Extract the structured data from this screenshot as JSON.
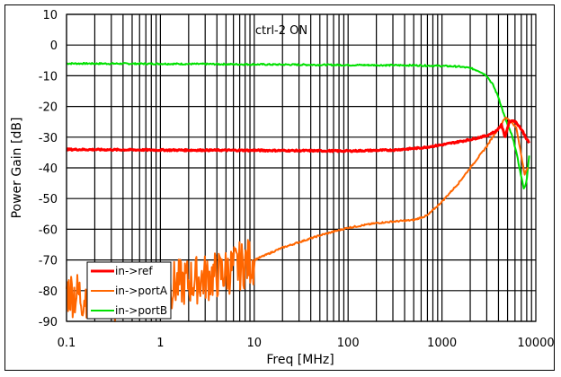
{
  "chart_data": {
    "type": "line",
    "title": "ctrl-2 ON",
    "xlabel": "Freq [MHz]",
    "ylabel": "Power Gain [dB]",
    "xscale": "log",
    "xlim": [
      0.1,
      10000
    ],
    "ylim": [
      -90,
      10
    ],
    "x_ticks": [
      "0.1",
      "1",
      "10",
      "100",
      "1000",
      "10000"
    ],
    "y_ticks": [
      "10",
      "0",
      "-10",
      "-20",
      "-30",
      "-40",
      "-50",
      "-60",
      "-70",
      "-80",
      "-90"
    ],
    "grid": true,
    "legend_position": "lower left",
    "series": [
      {
        "name": "in->ref",
        "color": "#ff0000",
        "width": 3,
        "x": [
          0.1,
          1,
          10,
          100,
          300,
          600,
          1000,
          1500,
          2000,
          3000,
          3800,
          4300,
          4700,
          5200,
          5800,
          6500,
          7200,
          7800,
          8500
        ],
        "y": [
          -34,
          -34.2,
          -34.3,
          -34.5,
          -34.2,
          -33.5,
          -32.5,
          -31.5,
          -30.8,
          -29.5,
          -28,
          -26,
          -30,
          -25,
          -24.5,
          -26,
          -28,
          -30,
          -32
        ]
      },
      {
        "name": "in->portA",
        "color": "#ff6600",
        "width": 2,
        "x": [
          0.1,
          0.15,
          0.2,
          0.3,
          0.5,
          0.8,
          1,
          2,
          4,
          7,
          10,
          20,
          50,
          100,
          200,
          300,
          500,
          700,
          1000,
          1500,
          2000,
          3000,
          4000,
          4800,
          5500,
          6200,
          7000,
          7600,
          8200
        ],
        "y": [
          -80,
          -82,
          -78,
          -83,
          -80,
          -81,
          -79,
          -77,
          -75,
          -72,
          -70,
          -66,
          -62,
          -59.5,
          -58,
          -57.5,
          -57,
          -55.5,
          -51,
          -45,
          -40,
          -33,
          -27,
          -23.5,
          -25,
          -27,
          -36,
          -42,
          -40
        ],
        "noisy_until": 10
      },
      {
        "name": "in->portB",
        "color": "#00e000",
        "width": 2,
        "x": [
          0.1,
          1,
          10,
          100,
          500,
          1000,
          1500,
          2000,
          2500,
          3000,
          3500,
          4000,
          4500,
          5000,
          5500,
          6000,
          6500,
          7000,
          7500,
          8000,
          8500
        ],
        "y": [
          -6,
          -6.1,
          -6.3,
          -6.5,
          -6.6,
          -6.8,
          -7,
          -7.5,
          -8.5,
          -10,
          -13,
          -17,
          -22,
          -26,
          -29,
          -33,
          -38,
          -43,
          -47,
          -44,
          -36
        ]
      }
    ]
  },
  "legend": {
    "items": [
      {
        "label": "in->ref",
        "color": "#ff0000"
      },
      {
        "label": "in->portA",
        "color": "#ff6600"
      },
      {
        "label": "in->portB",
        "color": "#00e000"
      }
    ]
  }
}
